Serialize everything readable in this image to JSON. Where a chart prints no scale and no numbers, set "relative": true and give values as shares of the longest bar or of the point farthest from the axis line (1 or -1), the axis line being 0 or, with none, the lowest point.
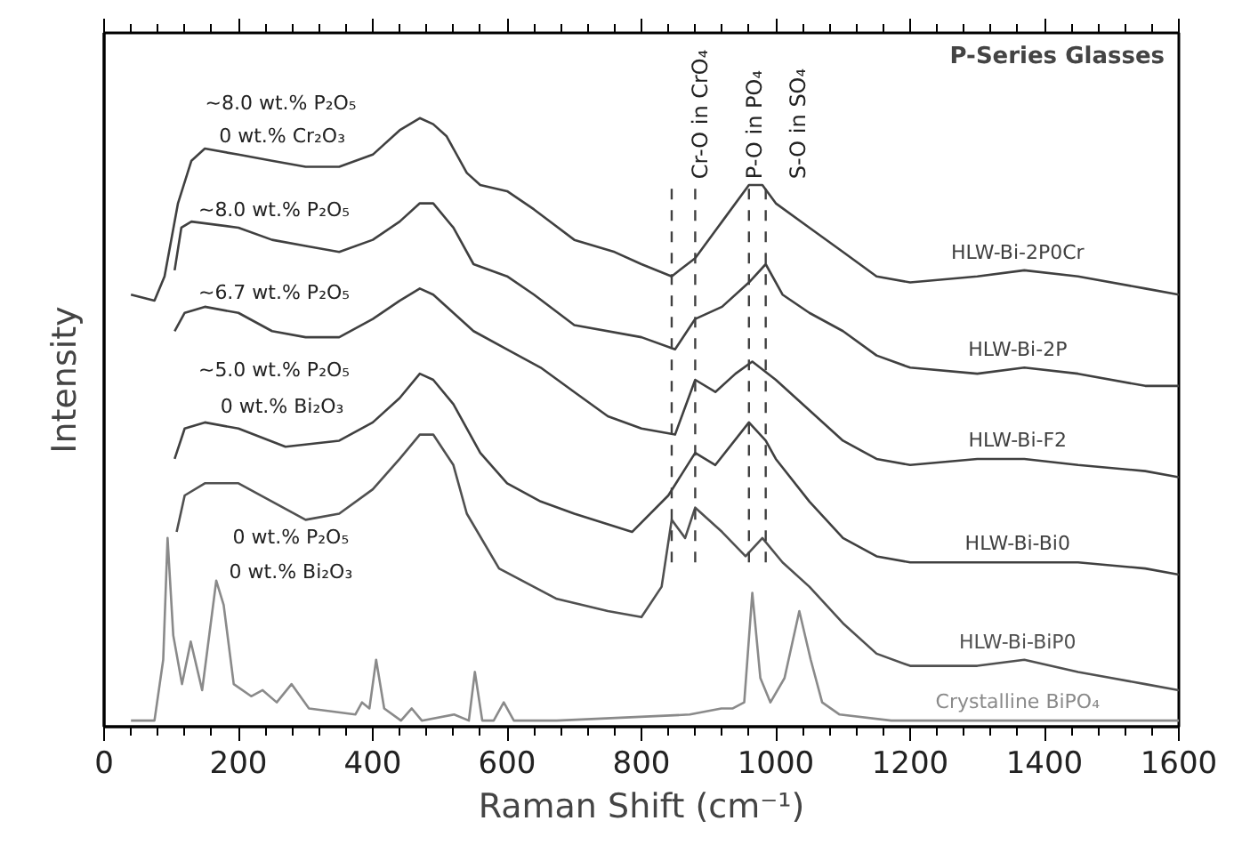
{
  "chart_data": {
    "type": "line",
    "relative": true,
    "title": "P-Series Glasses",
    "xlabel": "Raman Shift (cm⁻¹)",
    "ylabel": "Intensity",
    "xlim": [
      0,
      1600
    ],
    "xticks": [
      0,
      200,
      400,
      600,
      800,
      1000,
      1200,
      1400,
      1600
    ],
    "tick_labels": "x",
    "grid": false,
    "legend": false,
    "marker": "none",
    "line_style": "solid",
    "series": [
      {
        "name": "HLW-Bi-2P0Cr",
        "color": "#404040",
        "x": [
          40,
          75,
          90,
          110,
          130,
          150,
          200,
          250,
          300,
          350,
          400,
          440,
          470,
          490,
          510,
          540,
          560,
          600,
          640,
          700,
          760,
          800,
          845,
          880,
          920,
          960,
          980,
          1000,
          1050,
          1100,
          1150,
          1200,
          1300,
          1370,
          1450,
          1550,
          1600
        ],
        "values": [
          0.71,
          0.7,
          0.74,
          0.86,
          0.93,
          0.95,
          0.94,
          0.93,
          0.92,
          0.92,
          0.94,
          0.98,
          1.0,
          0.99,
          0.97,
          0.91,
          0.89,
          0.88,
          0.85,
          0.8,
          0.78,
          0.76,
          0.74,
          0.77,
          0.83,
          0.89,
          0.89,
          0.86,
          0.82,
          0.78,
          0.74,
          0.73,
          0.74,
          0.75,
          0.74,
          0.72,
          0.71
        ]
      },
      {
        "name": "HLW-Bi-2P",
        "color": "#404040",
        "x": [
          105,
          115,
          130,
          200,
          250,
          300,
          350,
          400,
          440,
          470,
          490,
          520,
          550,
          600,
          640,
          700,
          800,
          850,
          880,
          920,
          960,
          985,
          1010,
          1050,
          1100,
          1150,
          1200,
          1300,
          1370,
          1450,
          1550,
          1600
        ],
        "values": [
          0.75,
          0.82,
          0.83,
          0.82,
          0.8,
          0.79,
          0.78,
          0.8,
          0.83,
          0.86,
          0.86,
          0.82,
          0.76,
          0.74,
          0.71,
          0.66,
          0.64,
          0.62,
          0.67,
          0.69,
          0.73,
          0.76,
          0.71,
          0.68,
          0.65,
          0.61,
          0.59,
          0.58,
          0.59,
          0.58,
          0.56,
          0.56
        ]
      },
      {
        "name": "HLW-Bi-F2",
        "color": "#404040",
        "x": [
          105,
          120,
          150,
          200,
          250,
          300,
          350,
          400,
          440,
          470,
          490,
          520,
          550,
          600,
          650,
          700,
          750,
          800,
          850,
          880,
          910,
          940,
          965,
          1000,
          1050,
          1100,
          1150,
          1200,
          1300,
          1370,
          1450,
          1550,
          1600
        ],
        "values": [
          0.65,
          0.68,
          0.69,
          0.68,
          0.65,
          0.64,
          0.64,
          0.67,
          0.7,
          0.72,
          0.71,
          0.68,
          0.65,
          0.62,
          0.59,
          0.55,
          0.51,
          0.49,
          0.48,
          0.57,
          0.55,
          0.58,
          0.6,
          0.57,
          0.52,
          0.47,
          0.44,
          0.43,
          0.44,
          0.44,
          0.43,
          0.42,
          0.41
        ]
      },
      {
        "name": "HLW-Bi-Bi0",
        "color": "#404040",
        "x": [
          105,
          120,
          150,
          200,
          270,
          350,
          400,
          440,
          470,
          490,
          520,
          560,
          600,
          650,
          700,
          786,
          840,
          880,
          910,
          960,
          985,
          1000,
          1050,
          1100,
          1150,
          1200,
          1300,
          1370,
          1450,
          1550,
          1600
        ],
        "values": [
          0.44,
          0.49,
          0.5,
          0.49,
          0.46,
          0.47,
          0.5,
          0.54,
          0.58,
          0.57,
          0.53,
          0.45,
          0.4,
          0.37,
          0.35,
          0.32,
          0.38,
          0.45,
          0.43,
          0.5,
          0.47,
          0.44,
          0.37,
          0.31,
          0.28,
          0.27,
          0.27,
          0.27,
          0.27,
          0.26,
          0.25
        ]
      },
      {
        "name": "HLW-Bi-BiP0",
        "color": "#505050",
        "x": [
          108,
          120,
          150,
          200,
          250,
          300,
          350,
          400,
          440,
          470,
          490,
          520,
          540,
          588,
          674,
          750,
          800,
          830,
          845,
          865,
          880,
          920,
          955,
          980,
          1010,
          1050,
          1100,
          1150,
          1200,
          1300,
          1370,
          1450,
          1550,
          1600
        ],
        "values": [
          0.32,
          0.38,
          0.4,
          0.4,
          0.37,
          0.34,
          0.35,
          0.39,
          0.44,
          0.48,
          0.48,
          0.43,
          0.35,
          0.26,
          0.21,
          0.19,
          0.18,
          0.23,
          0.34,
          0.31,
          0.36,
          0.32,
          0.28,
          0.31,
          0.27,
          0.23,
          0.17,
          0.12,
          0.1,
          0.1,
          0.11,
          0.09,
          0.07,
          0.06
        ]
      },
      {
        "name": "Crystalline BiPO₄",
        "color": "#8a8a8a",
        "x": [
          40,
          75,
          88,
          94.5,
          103,
          116,
          129,
          146,
          167,
          178,
          193,
          219,
          236,
          257,
          279,
          305,
          374,
          384,
          395,
          405,
          417,
          442,
          458,
          473,
          521,
          543,
          552,
          563,
          580,
          595,
          610,
          674,
          872,
          919,
          936,
          953,
          965,
          977,
          992,
          1013,
          1035,
          1052,
          1069,
          1095,
          1172,
          1600
        ],
        "values": [
          0.01,
          0.01,
          0.11,
          0.31,
          0.15,
          0.07,
          0.14,
          0.06,
          0.24,
          0.2,
          0.07,
          0.05,
          0.06,
          0.04,
          0.07,
          0.03,
          0.02,
          0.04,
          0.03,
          0.11,
          0.03,
          0.01,
          0.03,
          0.01,
          0.02,
          0.01,
          0.09,
          0.01,
          0.01,
          0.04,
          0.01,
          0.01,
          0.02,
          0.03,
          0.03,
          0.04,
          0.22,
          0.08,
          0.04,
          0.08,
          0.19,
          0.11,
          0.04,
          0.02,
          0.01,
          0.01
        ]
      }
    ],
    "ref_lines": [
      {
        "axis": "x",
        "value": 845,
        "label": null,
        "line_style": "dashed",
        "color": "#404040"
      },
      {
        "axis": "x",
        "value": 880,
        "label": "Cr-O in CrO₄",
        "line_style": "dashed",
        "color": "#404040"
      },
      {
        "axis": "x",
        "value": 960,
        "label": "P-O in PO₄",
        "line_style": "dashed",
        "color": "#404040"
      },
      {
        "axis": "x",
        "value": 985,
        "label": "S-O in SO₄",
        "line_style": "dashed",
        "color": "#404040"
      }
    ],
    "annotations": [
      "~8.0 wt.% P₂O₅",
      "0 wt.% Cr₂O₃",
      "~8.0 wt.% P₂O₅",
      "~6.7 wt.% P₂O₅",
      "~5.0 wt.% P₂O₅",
      "0 wt.% Bi₂O₃",
      "0 wt.% P₂O₅",
      "0 wt.% Bi₂O₃"
    ]
  }
}
